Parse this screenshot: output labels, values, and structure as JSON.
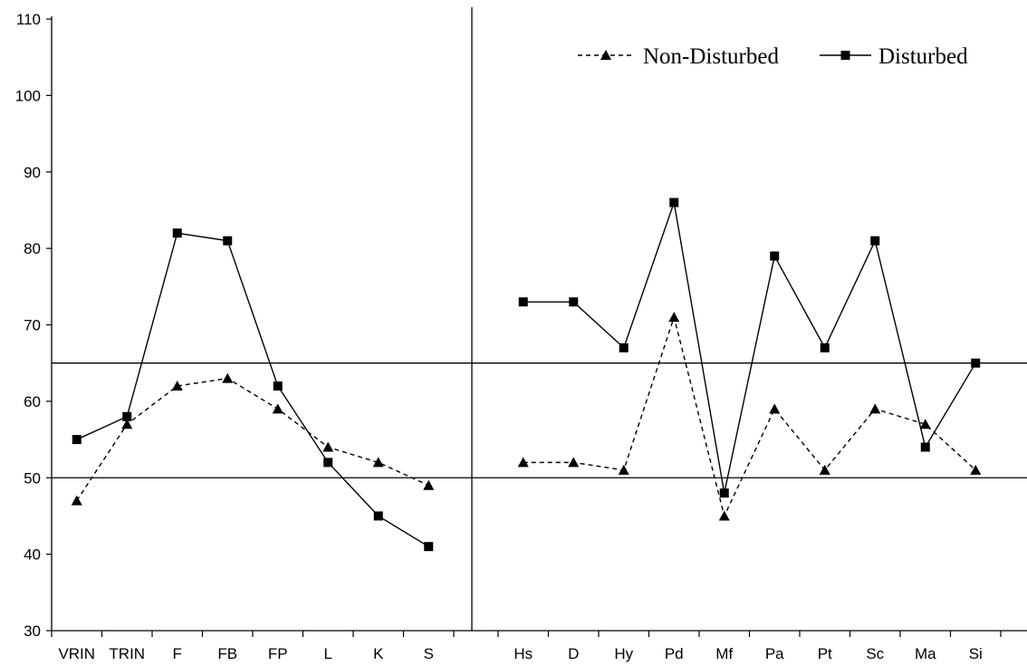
{
  "chart_data": {
    "type": "line",
    "title": "",
    "xlabel": "",
    "ylabel": "",
    "ylim": [
      30,
      110
    ],
    "y_ticks": [
      "30",
      "40",
      "50",
      "60",
      "70",
      "80",
      "90",
      "100",
      "110"
    ],
    "grid": false,
    "legend_position": "top-right",
    "reference_lines": [
      50,
      65
    ],
    "panels": [
      {
        "categories": [
          "VRIN",
          "TRIN",
          "F",
          "FB",
          "FP",
          "L",
          "K",
          "S"
        ],
        "series": [
          {
            "name": "Non-Disturbed",
            "values": [
              47,
              57,
              62,
              63,
              59,
              54,
              52,
              49
            ]
          },
          {
            "name": "Disturbed",
            "values": [
              55,
              58,
              82,
              81,
              62,
              52,
              45,
              41
            ]
          }
        ]
      },
      {
        "categories": [
          "Hs",
          "D",
          "Hy",
          "Pd",
          "Mf",
          "Pa",
          "Pt",
          "Sc",
          "Ma",
          "Si"
        ],
        "series": [
          {
            "name": "Non-Disturbed",
            "values": [
              52,
              52,
              51,
              71,
              45,
              59,
              51,
              59,
              57,
              51
            ]
          },
          {
            "name": "Disturbed",
            "values": [
              73,
              73,
              67,
              86,
              48,
              79,
              67,
              81,
              54,
              65
            ]
          }
        ]
      }
    ],
    "series_styles": [
      {
        "name": "Non-Disturbed",
        "marker": "triangle",
        "dash": "dashed",
        "color": "#000000"
      },
      {
        "name": "Disturbed",
        "marker": "square",
        "dash": "solid",
        "color": "#000000"
      }
    ]
  }
}
